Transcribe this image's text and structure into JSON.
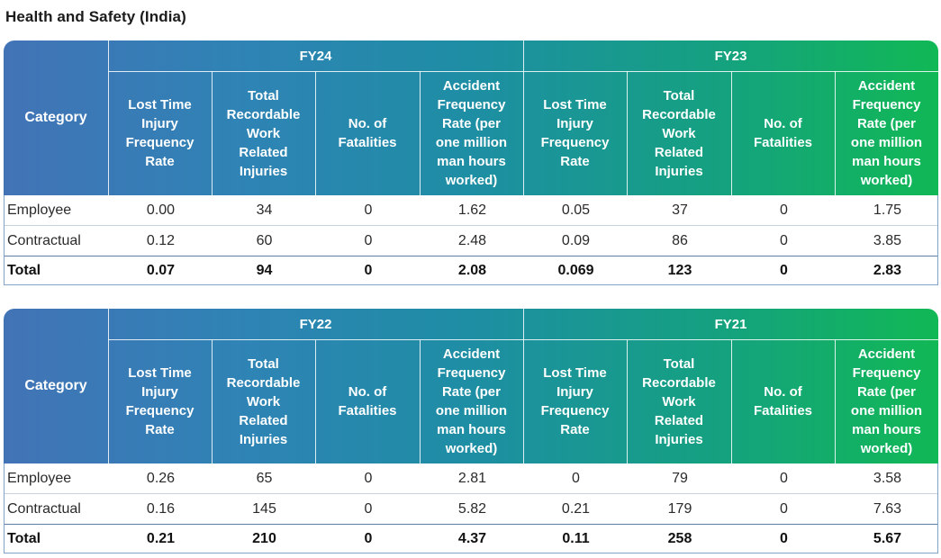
{
  "title": "Health and Safety (India)",
  "category_label": "Category",
  "column_labels": [
    "Lost Time Injury Frequency Rate",
    "Total Recordable Work Related Injuries",
    "No. of Fatalities",
    "Accident Frequency Rate (per one million man hours worked)"
  ],
  "column_label_lines": [
    [
      "Lost Time",
      "Injury",
      "Frequency",
      "Rate"
    ],
    [
      "Total",
      "Recordable",
      "Work",
      "Related",
      "Injuries"
    ],
    [
      "No. of",
      "Fatalities"
    ],
    [
      "Accident",
      "Frequency",
      "Rate (per",
      "one million",
      "man hours",
      "worked)"
    ]
  ],
  "colors": {
    "header_gradient_start": "#4273b6",
    "header_gradient_end": "#11b855",
    "header_text": "#ffffff"
  },
  "tables": [
    {
      "years": [
        "FY24",
        "FY23"
      ],
      "rows": [
        {
          "label": "Employee",
          "values": [
            "0.00",
            "34",
            "0",
            "1.62",
            "0.05",
            "37",
            "0",
            "1.75"
          ],
          "bold": false
        },
        {
          "label": "Contractual",
          "values": [
            "0.12",
            "60",
            "0",
            "2.48",
            "0.09",
            "86",
            "0",
            "3.85"
          ],
          "bold": false
        },
        {
          "label": "Total",
          "values": [
            "0.07",
            "94",
            "0",
            "2.08",
            "0.069",
            "123",
            "0",
            "2.83"
          ],
          "bold": true
        }
      ]
    },
    {
      "years": [
        "FY22",
        "FY21"
      ],
      "rows": [
        {
          "label": "Employee",
          "values": [
            "0.26",
            "65",
            "0",
            "2.81",
            "0",
            "79",
            "0",
            "3.58"
          ],
          "bold": false
        },
        {
          "label": "Contractual",
          "values": [
            "0.16",
            "145",
            "0",
            "5.82",
            "0.21",
            "179",
            "0",
            "7.63"
          ],
          "bold": false
        },
        {
          "label": "Total",
          "values": [
            "0.21",
            "210",
            "0",
            "4.37",
            "0.11",
            "258",
            "0",
            "5.67"
          ],
          "bold": true
        }
      ]
    }
  ]
}
